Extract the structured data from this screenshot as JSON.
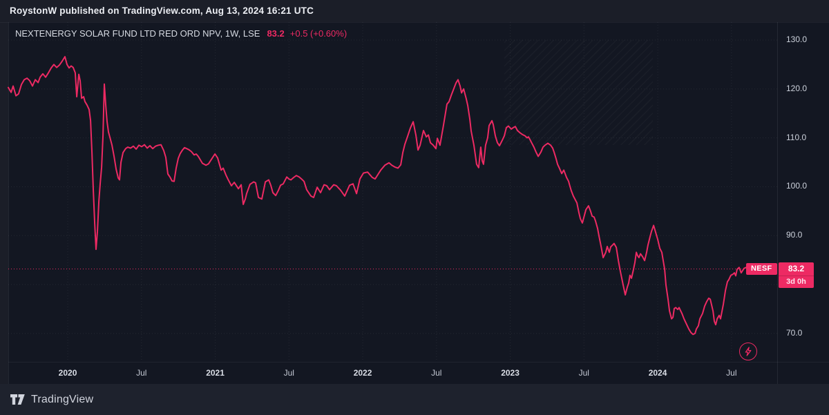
{
  "header": {
    "byline": "RoystonW published on TradingView.com, Aug 13, 2024 16:21 UTC"
  },
  "chart": {
    "title": "NEXTENERGY SOLAR FUND LTD RED ORD NPV, 1W, LSE",
    "price": "83.2",
    "change": "+0.5 (+0.60%)",
    "price_label": {
      "symbol": "NESF",
      "price": "83.2",
      "countdown": "3d 0h"
    }
  },
  "footer": {
    "brand": "TradingView"
  },
  "colors": {
    "accent": "#ed2a63",
    "chart_bg": "#131722",
    "page_bg": "#1b1e28",
    "footer_bg": "#1e222d",
    "grid": "rgba(255,255,255,0.08)",
    "text_primary": "#eceef3",
    "text_secondary": "#ced3dd"
  },
  "chart_data": {
    "type": "line",
    "symbol": "NESF",
    "title": "NEXTENERGY SOLAR FUND LTD RED ORD NPV, 1W, LSE",
    "timeframe": "1W",
    "exchange": "LSE",
    "last_price": 83.2,
    "change": 0.5,
    "change_pct": 0.6,
    "price_line_value": 83.2,
    "x_unit": "decimal_year",
    "x_range": [
      2019.597,
      2024.81
    ],
    "y_range": [
      64.2,
      133.67
    ],
    "grid": true,
    "y_ticks": [
      {
        "label": "130.0",
        "value": 130
      },
      {
        "label": "120.0",
        "value": 120
      },
      {
        "label": "110.0",
        "value": 110
      },
      {
        "label": "100.0",
        "value": 100
      },
      {
        "label": "90.0",
        "value": 90
      },
      {
        "label": "70.0",
        "value": 70
      }
    ],
    "x_ticks": [
      {
        "label": "2020",
        "t": 2020.0,
        "major": true
      },
      {
        "label": "Jul",
        "t": 2020.5,
        "major": false
      },
      {
        "label": "2021",
        "t": 2021.0,
        "major": true
      },
      {
        "label": "Jul",
        "t": 2021.5,
        "major": false
      },
      {
        "label": "2022",
        "t": 2022.0,
        "major": true
      },
      {
        "label": "Jul",
        "t": 2022.5,
        "major": false
      },
      {
        "label": "2023",
        "t": 2023.0,
        "major": true
      },
      {
        "label": "Jul",
        "t": 2023.5,
        "major": false
      },
      {
        "label": "2024",
        "t": 2024.0,
        "major": true
      },
      {
        "label": "Jul",
        "t": 2024.5,
        "major": false
      }
    ],
    "points": [
      [
        2019.597,
        120.3
      ],
      [
        2019.616,
        119.3
      ],
      [
        2019.63,
        120.6
      ],
      [
        2019.649,
        118.6
      ],
      [
        2019.667,
        119.0
      ],
      [
        2019.686,
        120.9
      ],
      [
        2019.705,
        121.9
      ],
      [
        2019.724,
        122.2
      ],
      [
        2019.742,
        121.7
      ],
      [
        2019.761,
        120.6
      ],
      [
        2019.78,
        121.9
      ],
      [
        2019.799,
        121.3
      ],
      [
        2019.813,
        122.4
      ],
      [
        2019.831,
        123.1
      ],
      [
        2019.85,
        122.4
      ],
      [
        2019.869,
        123.3
      ],
      [
        2019.888,
        124.3
      ],
      [
        2019.906,
        125.0
      ],
      [
        2019.925,
        124.4
      ],
      [
        2019.944,
        124.9
      ],
      [
        2019.963,
        125.7
      ],
      [
        2019.981,
        126.6
      ],
      [
        2019.995,
        125.0
      ],
      [
        2020.009,
        124.3
      ],
      [
        2020.023,
        124.7
      ],
      [
        2020.037,
        124.4
      ],
      [
        2020.051,
        123.3
      ],
      [
        2020.061,
        118.4
      ],
      [
        2020.075,
        123.0
      ],
      [
        2020.084,
        121.7
      ],
      [
        2020.094,
        118.1
      ],
      [
        2020.108,
        118.4
      ],
      [
        2020.117,
        117.4
      ],
      [
        2020.131,
        116.7
      ],
      [
        2020.145,
        115.8
      ],
      [
        2020.155,
        113.5
      ],
      [
        2020.164,
        107.0
      ],
      [
        2020.173,
        99.5
      ],
      [
        2020.183,
        92.5
      ],
      [
        2020.192,
        87.2
      ],
      [
        2020.201,
        90.8
      ],
      [
        2020.211,
        97.0
      ],
      [
        2020.22,
        100.6
      ],
      [
        2020.23,
        104.0
      ],
      [
        2020.239,
        110.5
      ],
      [
        2020.248,
        121.0
      ],
      [
        2020.258,
        116.6
      ],
      [
        2020.267,
        113.3
      ],
      [
        2020.276,
        111.2
      ],
      [
        2020.286,
        110.1
      ],
      [
        2020.3,
        108.5
      ],
      [
        2020.314,
        106.2
      ],
      [
        2020.328,
        103.6
      ],
      [
        2020.342,
        101.8
      ],
      [
        2020.351,
        101.4
      ],
      [
        2020.361,
        105.0
      ],
      [
        2020.375,
        107.0
      ],
      [
        2020.393,
        107.8
      ],
      [
        2020.407,
        108.1
      ],
      [
        2020.426,
        107.9
      ],
      [
        2020.445,
        108.3
      ],
      [
        2020.464,
        107.7
      ],
      [
        2020.482,
        108.5
      ],
      [
        2020.501,
        108.2
      ],
      [
        2020.52,
        108.6
      ],
      [
        2020.539,
        107.9
      ],
      [
        2020.557,
        108.4
      ],
      [
        2020.576,
        107.8
      ],
      [
        2020.595,
        108.3
      ],
      [
        2020.614,
        108.5
      ],
      [
        2020.632,
        108.6
      ],
      [
        2020.651,
        107.4
      ],
      [
        2020.665,
        106.0
      ],
      [
        2020.679,
        102.6
      ],
      [
        2020.693,
        102.0
      ],
      [
        2020.707,
        101.2
      ],
      [
        2020.721,
        101.1
      ],
      [
        2020.735,
        103.8
      ],
      [
        2020.749,
        105.8
      ],
      [
        2020.763,
        106.8
      ],
      [
        2020.778,
        107.5
      ],
      [
        2020.792,
        108.0
      ],
      [
        2020.806,
        107.8
      ],
      [
        2020.82,
        107.6
      ],
      [
        2020.838,
        107.2
      ],
      [
        2020.857,
        106.5
      ],
      [
        2020.871,
        106.7
      ],
      [
        2020.885,
        106.2
      ],
      [
        2020.899,
        105.5
      ],
      [
        2020.913,
        104.8
      ],
      [
        2020.937,
        104.4
      ],
      [
        2020.955,
        104.7
      ],
      [
        2020.974,
        105.6
      ],
      [
        2020.998,
        106.7
      ],
      [
        2021.016,
        105.9
      ],
      [
        2021.04,
        103.4
      ],
      [
        2021.054,
        103.8
      ],
      [
        2021.073,
        102.4
      ],
      [
        2021.087,
        101.5
      ],
      [
        2021.11,
        100.2
      ],
      [
        2021.129,
        100.9
      ],
      [
        2021.157,
        99.6
      ],
      [
        2021.176,
        100.4
      ],
      [
        2021.19,
        96.4
      ],
      [
        2021.204,
        97.5
      ],
      [
        2021.213,
        98.6
      ],
      [
        2021.236,
        100.5
      ],
      [
        2021.26,
        101.0
      ],
      [
        2021.274,
        100.8
      ],
      [
        2021.293,
        97.8
      ],
      [
        2021.316,
        97.5
      ],
      [
        2021.34,
        101.0
      ],
      [
        2021.363,
        101.4
      ],
      [
        2021.377,
        100.3
      ],
      [
        2021.391,
        98.8
      ],
      [
        2021.41,
        98.2
      ],
      [
        2021.429,
        99.3
      ],
      [
        2021.443,
        100.3
      ],
      [
        2021.461,
        100.6
      ],
      [
        2021.485,
        102.0
      ],
      [
        2021.499,
        101.6
      ],
      [
        2021.513,
        101.4
      ],
      [
        2021.532,
        101.9
      ],
      [
        2021.55,
        102.3
      ],
      [
        2021.569,
        102.0
      ],
      [
        2021.588,
        101.5
      ],
      [
        2021.602,
        101.1
      ],
      [
        2021.62,
        99.4
      ],
      [
        2021.649,
        98.1
      ],
      [
        2021.667,
        97.8
      ],
      [
        2021.691,
        99.9
      ],
      [
        2021.714,
        98.8
      ],
      [
        2021.738,
        100.4
      ],
      [
        2021.756,
        100.2
      ],
      [
        2021.775,
        99.4
      ],
      [
        2021.803,
        100.4
      ],
      [
        2021.822,
        100.2
      ],
      [
        2021.85,
        99.3
      ],
      [
        2021.878,
        98.1
      ],
      [
        2021.911,
        100.3
      ],
      [
        2021.934,
        100.6
      ],
      [
        2021.958,
        98.6
      ],
      [
        2021.981,
        101.6
      ],
      [
        2022.005,
        102.8
      ],
      [
        2022.033,
        103.0
      ],
      [
        2022.065,
        101.9
      ],
      [
        2022.084,
        101.6
      ],
      [
        2022.122,
        103.4
      ],
      [
        2022.15,
        104.4
      ],
      [
        2022.178,
        104.9
      ],
      [
        2022.197,
        104.4
      ],
      [
        2022.22,
        104.0
      ],
      [
        2022.239,
        103.8
      ],
      [
        2022.258,
        104.5
      ],
      [
        2022.272,
        107.0
      ],
      [
        2022.286,
        108.7
      ],
      [
        2022.304,
        110.3
      ],
      [
        2022.323,
        112.0
      ],
      [
        2022.342,
        113.3
      ],
      [
        2022.361,
        110.5
      ],
      [
        2022.375,
        107.5
      ],
      [
        2022.389,
        108.5
      ],
      [
        2022.412,
        111.5
      ],
      [
        2022.431,
        110.2
      ],
      [
        2022.445,
        110.6
      ],
      [
        2022.459,
        109.0
      ],
      [
        2022.478,
        108.5
      ],
      [
        2022.496,
        107.8
      ],
      [
        2022.506,
        109.9
      ],
      [
        2022.524,
        108.5
      ],
      [
        2022.548,
        112.7
      ],
      [
        2022.571,
        116.9
      ],
      [
        2022.585,
        117.4
      ],
      [
        2022.6,
        118.7
      ],
      [
        2022.618,
        120.1
      ],
      [
        2022.632,
        121.2
      ],
      [
        2022.646,
        121.9
      ],
      [
        2022.66,
        120.6
      ],
      [
        2022.67,
        119.2
      ],
      [
        2022.684,
        120.0
      ],
      [
        2022.702,
        118.0
      ],
      [
        2022.712,
        116.6
      ],
      [
        2022.726,
        113.8
      ],
      [
        2022.735,
        111.4
      ],
      [
        2022.744,
        110.0
      ],
      [
        2022.754,
        108.5
      ],
      [
        2022.763,
        106.5
      ],
      [
        2022.772,
        104.6
      ],
      [
        2022.786,
        103.9
      ],
      [
        2022.8,
        108.1
      ],
      [
        2022.81,
        105.3
      ],
      [
        2022.819,
        104.6
      ],
      [
        2022.833,
        108.5
      ],
      [
        2022.847,
        110.0
      ],
      [
        2022.857,
        112.5
      ],
      [
        2022.876,
        113.5
      ],
      [
        2022.885,
        112.7
      ],
      [
        2022.899,
        110.4
      ],
      [
        2022.913,
        109.0
      ],
      [
        2022.927,
        108.4
      ],
      [
        2022.946,
        109.5
      ],
      [
        2022.96,
        110.4
      ],
      [
        2022.974,
        112.1
      ],
      [
        2022.988,
        112.4
      ],
      [
        2023.007,
        111.8
      ],
      [
        2023.021,
        112.1
      ],
      [
        2023.035,
        112.3
      ],
      [
        2023.049,
        111.5
      ],
      [
        2023.068,
        111.0
      ],
      [
        2023.082,
        110.7
      ],
      [
        2023.101,
        110.4
      ],
      [
        2023.115,
        110.0
      ],
      [
        2023.124,
        110.2
      ],
      [
        2023.133,
        109.7
      ],
      [
        2023.147,
        108.9
      ],
      [
        2023.161,
        108.1
      ],
      [
        2023.175,
        107.1
      ],
      [
        2023.19,
        106.2
      ],
      [
        2023.208,
        107.1
      ],
      [
        2023.222,
        108.1
      ],
      [
        2023.236,
        108.5
      ],
      [
        2023.255,
        108.9
      ],
      [
        2023.274,
        108.5
      ],
      [
        2023.288,
        107.9
      ],
      [
        2023.297,
        107.1
      ],
      [
        2023.311,
        105.7
      ],
      [
        2023.321,
        104.6
      ],
      [
        2023.335,
        103.7
      ],
      [
        2023.349,
        102.7
      ],
      [
        2023.363,
        103.4
      ],
      [
        2023.382,
        101.9
      ],
      [
        2023.396,
        101.1
      ],
      [
        2023.405,
        100.1
      ],
      [
        2023.414,
        99.2
      ],
      [
        2023.428,
        98.1
      ],
      [
        2023.442,
        97.3
      ],
      [
        2023.452,
        96.7
      ],
      [
        2023.466,
        94.7
      ],
      [
        2023.475,
        93.5
      ],
      [
        2023.489,
        92.6
      ],
      [
        2023.513,
        95.3
      ],
      [
        2023.531,
        96.1
      ],
      [
        2023.545,
        95.0
      ],
      [
        2023.555,
        94.0
      ],
      [
        2023.569,
        93.8
      ],
      [
        2023.578,
        93.0
      ],
      [
        2023.592,
        91.5
      ],
      [
        2023.602,
        89.9
      ],
      [
        2023.616,
        87.8
      ],
      [
        2023.63,
        85.5
      ],
      [
        2023.648,
        86.6
      ],
      [
        2023.658,
        87.8
      ],
      [
        2023.672,
        86.6
      ],
      [
        2023.681,
        87.7
      ],
      [
        2023.695,
        88.1
      ],
      [
        2023.704,
        88.4
      ],
      [
        2023.719,
        87.6
      ],
      [
        2023.733,
        84.9
      ],
      [
        2023.747,
        82.7
      ],
      [
        2023.765,
        80.0
      ],
      [
        2023.78,
        77.9
      ],
      [
        2023.794,
        79.5
      ],
      [
        2023.803,
        80.3
      ],
      [
        2023.812,
        81.9
      ],
      [
        2023.822,
        81.3
      ],
      [
        2023.836,
        83.1
      ],
      [
        2023.845,
        84.5
      ],
      [
        2023.855,
        86.6
      ],
      [
        2023.864,
        85.9
      ],
      [
        2023.873,
        85.5
      ],
      [
        2023.883,
        86.3
      ],
      [
        2023.897,
        85.7
      ],
      [
        2023.911,
        84.9
      ],
      [
        2023.925,
        86.6
      ],
      [
        2023.934,
        88.1
      ],
      [
        2023.948,
        89.8
      ],
      [
        2023.958,
        90.9
      ],
      [
        2023.972,
        92.1
      ],
      [
        2023.981,
        91.2
      ],
      [
        2024.0,
        89.2
      ],
      [
        2024.014,
        87.4
      ],
      [
        2024.028,
        86.6
      ],
      [
        2024.047,
        83.1
      ],
      [
        2024.056,
        79.9
      ],
      [
        2024.07,
        77.0
      ],
      [
        2024.08,
        74.6
      ],
      [
        2024.094,
        73.0
      ],
      [
        2024.103,
        73.3
      ],
      [
        2024.112,
        75.1
      ],
      [
        2024.122,
        75.3
      ],
      [
        2024.136,
        74.9
      ],
      [
        2024.145,
        75.3
      ],
      [
        2024.164,
        74.1
      ],
      [
        2024.178,
        73.0
      ],
      [
        2024.192,
        72.1
      ],
      [
        2024.211,
        70.9
      ],
      [
        2024.225,
        70.2
      ],
      [
        2024.239,
        69.8
      ],
      [
        2024.253,
        70.0
      ],
      [
        2024.262,
        70.9
      ],
      [
        2024.276,
        71.6
      ],
      [
        2024.286,
        73.0
      ],
      [
        2024.304,
        74.1
      ],
      [
        2024.318,
        75.6
      ],
      [
        2024.332,
        76.5
      ],
      [
        2024.346,
        77.2
      ],
      [
        2024.356,
        77.0
      ],
      [
        2024.375,
        74.6
      ],
      [
        2024.384,
        72.5
      ],
      [
        2024.393,
        71.8
      ],
      [
        2024.403,
        73.0
      ],
      [
        2024.417,
        73.7
      ],
      [
        2024.426,
        73.0
      ],
      [
        2024.445,
        76.0
      ],
      [
        2024.459,
        78.8
      ],
      [
        2024.473,
        80.6
      ],
      [
        2024.482,
        81.0
      ],
      [
        2024.496,
        81.9
      ],
      [
        2024.51,
        82.1
      ],
      [
        2024.52,
        82.4
      ],
      [
        2024.529,
        81.8
      ],
      [
        2024.538,
        83.1
      ],
      [
        2024.552,
        83.5
      ],
      [
        2024.566,
        82.4
      ],
      [
        2024.585,
        83.3
      ],
      [
        2024.599,
        83.5
      ],
      [
        2024.613,
        83.2
      ]
    ]
  }
}
